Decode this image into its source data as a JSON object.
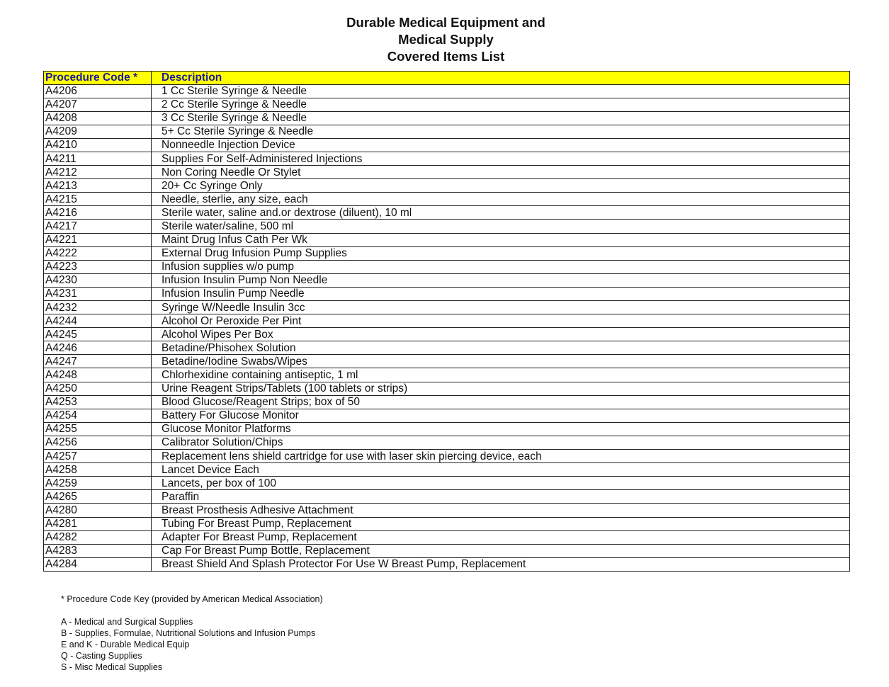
{
  "title": [
    "Durable Medical Equipment and",
    "Medical Supply",
    "Covered Items List"
  ],
  "table": {
    "headers": [
      "Procedure Code *",
      "Description"
    ],
    "header_bg": "#ffff00",
    "header_color": "#1a1aa0",
    "rows": [
      [
        "A4206",
        "1 Cc Sterile Syringe & Needle"
      ],
      [
        "A4207",
        "2 Cc Sterile Syringe & Needle"
      ],
      [
        "A4208",
        "3 Cc Sterile Syringe & Needle"
      ],
      [
        "A4209",
        "5+ Cc Sterile Syringe & Needle"
      ],
      [
        "A4210",
        "Nonneedle Injection Device"
      ],
      [
        "A4211",
        "Supplies For Self-Administered Injections"
      ],
      [
        "A4212",
        "Non Coring Needle Or Stylet"
      ],
      [
        "A4213",
        "20+ Cc Syringe Only"
      ],
      [
        "A4215",
        "Needle, sterlie, any size, each"
      ],
      [
        "A4216",
        "Sterile water, saline and.or dextrose (diluent), 10 ml"
      ],
      [
        "A4217",
        "Sterile water/saline, 500 ml"
      ],
      [
        "A4221",
        "Maint Drug Infus Cath Per Wk"
      ],
      [
        "A4222",
        "External Drug Infusion Pump Supplies"
      ],
      [
        "A4223",
        "Infusion supplies w/o pump"
      ],
      [
        "A4230",
        "Infusion Insulin Pump Non Needle"
      ],
      [
        "A4231",
        "Infusion Insulin Pump Needle"
      ],
      [
        "A4232",
        "Syringe W/Needle Insulin 3cc"
      ],
      [
        "A4244",
        "Alcohol Or Peroxide Per Pint"
      ],
      [
        "A4245",
        "Alcohol Wipes Per Box"
      ],
      [
        "A4246",
        "Betadine/Phisohex Solution"
      ],
      [
        "A4247",
        "Betadine/Iodine Swabs/Wipes"
      ],
      [
        "A4248",
        "Chlorhexidine containing antiseptic, 1 ml"
      ],
      [
        "A4250",
        "Urine Reagent Strips/Tablets (100 tablets or strips)"
      ],
      [
        "A4253",
        "Blood Glucose/Reagent Strips; box of 50"
      ],
      [
        "A4254",
        "Battery For Glucose Monitor"
      ],
      [
        "A4255",
        "Glucose Monitor Platforms"
      ],
      [
        "A4256",
        "Calibrator Solution/Chips"
      ],
      [
        "A4257",
        "Replacement lens shield cartridge for use with laser skin piercing device, each"
      ],
      [
        "A4258",
        "Lancet Device Each"
      ],
      [
        "A4259",
        "Lancets, per box of 100"
      ],
      [
        "A4265",
        "Paraffin"
      ],
      [
        "A4280",
        "Breast Prosthesis Adhesive Attachment"
      ],
      [
        "A4281",
        "Tubing For Breast Pump, Replacement"
      ],
      [
        "A4282",
        "Adapter For Breast Pump, Replacement"
      ],
      [
        "A4283",
        "Cap For Breast Pump Bottle, Replacement"
      ],
      [
        "A4284",
        "Breast Shield And Splash Protector For Use W Breast Pump, Replacement"
      ]
    ]
  },
  "notes": {
    "key_title": "* Procedure Code Key (provided by American Medical Association)",
    "items": [
      "A - Medical and Surgical Supplies",
      "B - Supplies, Formulae, Nutritional Solutions and Infusion Pumps",
      "E and K -  Durable Medical Equip",
      "Q - Casting Supplies",
      "S - Misc Medical Supplies"
    ]
  }
}
